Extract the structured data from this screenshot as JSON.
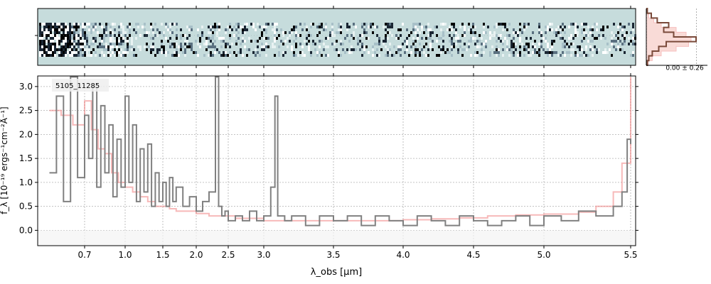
{
  "chart_data": {
    "type": "line",
    "object_label": "5105_11285",
    "xlabel": "λ_obs [μm]",
    "ylabel": "f_λ [10⁻¹⁹ ergs⁻¹cm⁻²Å⁻¹]",
    "xticks": [
      0.7,
      1.0,
      1.5,
      2.0,
      2.5,
      3.0,
      3.5,
      4.0,
      4.5,
      5.0,
      5.5
    ],
    "yticks": [
      0.0,
      0.5,
      1.0,
      1.5,
      2.0,
      2.5,
      3.0
    ],
    "xlim": [
      0.5,
      5.52
    ],
    "ylim": [
      -0.32,
      3.22
    ],
    "grid": true,
    "hist_label": "0.00 ± 0.26",
    "colors": {
      "data": "#808080",
      "model": "#f08080",
      "twod_bg": "#c6dcdc",
      "hist": "#7a4a3a"
    },
    "series": [
      {
        "style": "steps",
        "x": [
          0.55,
          0.58,
          0.61,
          0.64,
          0.67,
          0.7,
          0.73,
          0.76,
          0.79,
          0.82,
          0.85,
          0.88,
          0.91,
          0.94,
          0.97,
          1.0,
          1.05,
          1.1,
          1.15,
          1.2,
          1.25,
          1.3,
          1.35,
          1.4,
          1.45,
          1.5,
          1.55,
          1.6,
          1.65,
          1.7,
          1.8,
          1.9,
          2.0,
          2.1,
          2.2,
          2.3,
          2.35,
          2.4,
          2.45,
          2.5,
          2.6,
          2.7,
          2.8,
          2.9,
          3.0,
          3.05,
          3.08,
          3.1,
          3.15,
          3.2,
          3.3,
          3.4,
          3.5,
          3.6,
          3.7,
          3.8,
          3.9,
          4.0,
          4.1,
          4.2,
          4.3,
          4.4,
          4.5,
          4.6,
          4.7,
          4.8,
          4.9,
          5.0,
          5.1,
          5.2,
          5.3,
          5.4,
          5.45,
          5.48,
          5.5
        ],
        "y": [
          1.2,
          2.8,
          0.6,
          3.2,
          1.1,
          2.4,
          1.5,
          3.0,
          0.9,
          2.6,
          1.2,
          2.2,
          0.7,
          1.9,
          0.9,
          2.8,
          1.0,
          2.2,
          0.6,
          1.7,
          0.8,
          1.8,
          0.5,
          1.2,
          0.6,
          1.0,
          0.5,
          1.1,
          0.6,
          0.9,
          0.5,
          0.7,
          0.4,
          0.6,
          0.8,
          3.2,
          0.5,
          0.3,
          0.4,
          0.2,
          0.3,
          0.2,
          0.4,
          0.2,
          0.3,
          0.9,
          2.8,
          0.3,
          0.2,
          0.3,
          0.1,
          0.3,
          0.2,
          0.3,
          0.1,
          0.3,
          0.2,
          0.1,
          0.3,
          0.2,
          0.1,
          0.3,
          0.2,
          0.1,
          0.2,
          0.3,
          0.1,
          0.3,
          0.2,
          0.4,
          0.3,
          0.5,
          0.8,
          1.9,
          1.8
        ]
      },
      {
        "style": "steps",
        "x": [
          0.55,
          0.6,
          0.65,
          0.7,
          0.75,
          0.8,
          0.85,
          0.9,
          0.95,
          1.0,
          1.1,
          1.2,
          1.3,
          1.4,
          1.5,
          1.6,
          1.7,
          1.8,
          2.0,
          2.2,
          2.4,
          2.6,
          2.8,
          3.0,
          3.2,
          3.4,
          3.6,
          3.8,
          4.0,
          4.2,
          4.4,
          4.6,
          4.8,
          5.0,
          5.2,
          5.3,
          5.4,
          5.45,
          5.5
        ],
        "y": [
          2.5,
          2.4,
          2.2,
          2.7,
          2.1,
          1.7,
          1.6,
          1.2,
          1.0,
          0.9,
          0.8,
          0.7,
          0.6,
          0.5,
          0.5,
          0.45,
          0.4,
          0.4,
          0.35,
          0.3,
          0.3,
          0.25,
          0.25,
          0.2,
          0.2,
          0.2,
          0.2,
          0.2,
          0.22,
          0.24,
          0.26,
          0.3,
          0.32,
          0.34,
          0.38,
          0.5,
          0.8,
          1.4,
          3.2
        ]
      }
    ],
    "hist_bins": {
      "y": [
        -3,
        -2.5,
        -2,
        -1.5,
        -1,
        -0.5,
        0,
        0.5,
        1,
        1.5,
        2,
        2.5
      ],
      "data": [
        0.02,
        0.1,
        0.22,
        0.45,
        0.35,
        0.55,
        1.0,
        0.4,
        0.25,
        0.12,
        0.05,
        0.02
      ],
      "model": [
        0.0,
        0.05,
        0.15,
        0.3,
        0.6,
        0.8,
        0.9,
        0.85,
        0.6,
        0.3,
        0.12,
        0.04
      ]
    }
  }
}
